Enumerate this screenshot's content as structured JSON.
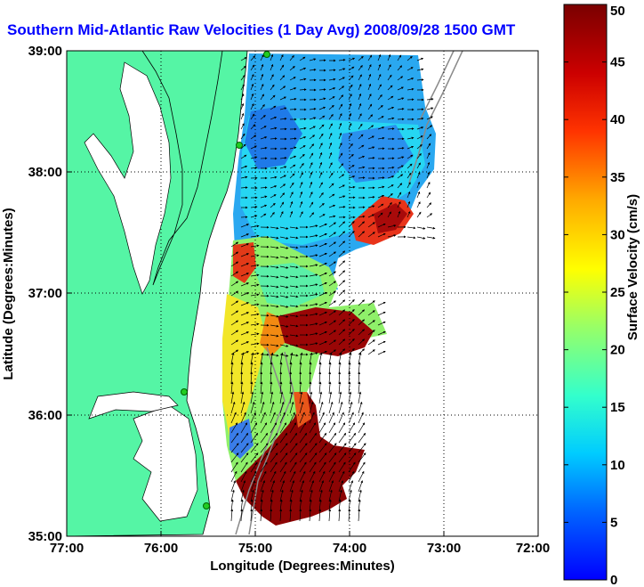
{
  "chart_data": {
    "type": "heatmap",
    "title": "Southern Mid-Atlantic Raw Velocities (1 Day Avg) 2008/09/28 1500 GMT",
    "xlabel": "Longitude (Degrees:Minutes)",
    "ylabel": "Latitude (Degrees:Minutes)",
    "x_ticks": [
      "77:00",
      "76:00",
      "75:00",
      "74:00",
      "73:00",
      "72:00"
    ],
    "y_ticks": [
      "39:00",
      "38:00",
      "37:00",
      "36:00",
      "35:00"
    ],
    "xlim": [
      -77,
      -72
    ],
    "ylim": [
      35,
      39
    ],
    "grid": true,
    "colorbar": {
      "label": "Surface Velocity (cm/s)",
      "range": [
        0,
        50
      ],
      "ticks": [
        "0",
        "5",
        "10",
        "15",
        "20",
        "25",
        "30",
        "35",
        "40",
        "45",
        "50"
      ]
    },
    "land_color": "#55f5a5",
    "high_velocity_regions_cm_s": [
      {
        "region": "offshore of 37.6N, 73.7W",
        "value": 40
      },
      {
        "region": "near 36.5N, 74.3W",
        "value": 50
      },
      {
        "region": "35.1N - 36.0N, 74.8W - 74.0W",
        "value": 48
      },
      {
        "region": "near 37.2N, 75.4W",
        "value": 42
      }
    ],
    "low_velocity_regions_cm_s": [
      {
        "region": "north of 37.8N",
        "value": 7
      },
      {
        "region": "near 35.8N, 75.1W",
        "value": 9
      }
    ]
  }
}
